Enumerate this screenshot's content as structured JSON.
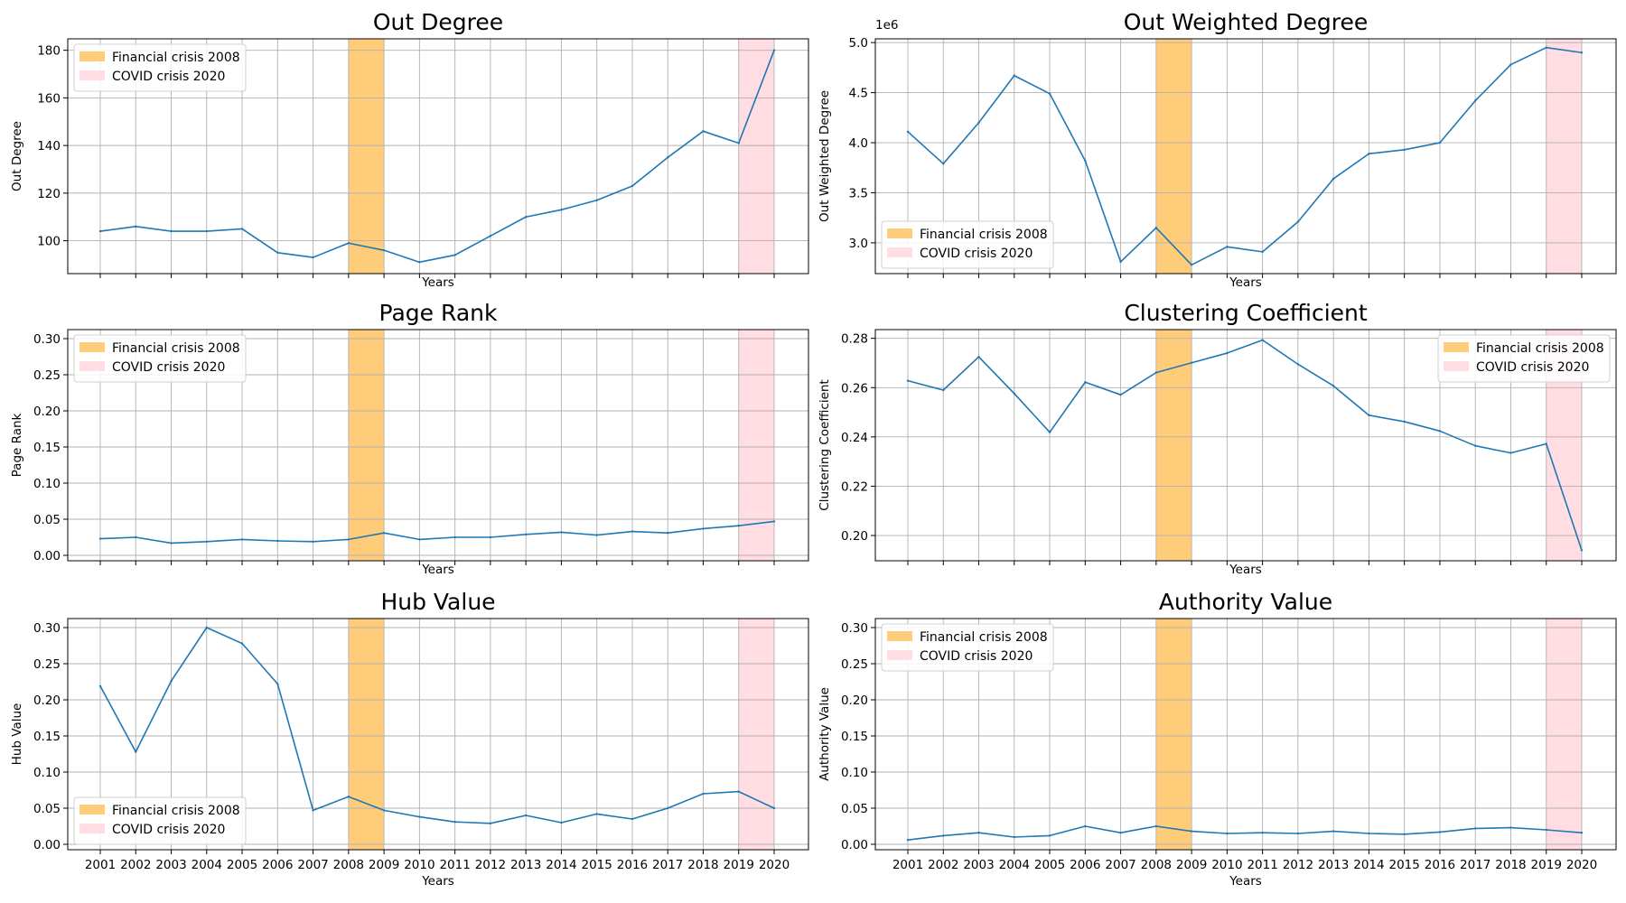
{
  "chart_data": [
    {
      "type": "line",
      "title": "Out Degree",
      "xlabel": "Years",
      "ylabel": "Out Degree",
      "x": [
        2001,
        2002,
        2003,
        2004,
        2005,
        2006,
        2007,
        2008,
        2009,
        2010,
        2011,
        2012,
        2013,
        2014,
        2015,
        2016,
        2017,
        2018,
        2019,
        2020
      ],
      "values": [
        104,
        106,
        104,
        104,
        105,
        95,
        93,
        99,
        96,
        91,
        94,
        102,
        110,
        113,
        117,
        123,
        135,
        146,
        141,
        180
      ],
      "ylim": [
        86.2,
        184.8
      ],
      "yticks": [
        100,
        120,
        140,
        160,
        180
      ],
      "ytick_labels": [
        "100",
        "120",
        "140",
        "160",
        "180"
      ],
      "show_xtick_labels": false,
      "offset_text": "",
      "legend_loc": "top-left",
      "grid": true
    },
    {
      "type": "line",
      "title": "Out Weighted Degree",
      "xlabel": "Years",
      "ylabel": "Out Weighted Degree",
      "x": [
        2001,
        2002,
        2003,
        2004,
        2005,
        2006,
        2007,
        2008,
        2009,
        2010,
        2011,
        2012,
        2013,
        2014,
        2015,
        2016,
        2017,
        2018,
        2019,
        2020
      ],
      "values": [
        4110000,
        3790000,
        4200000,
        4670000,
        4490000,
        3820000,
        2810000,
        3150000,
        2780000,
        2960000,
        2910000,
        3210000,
        3640000,
        3890000,
        3930000,
        4000000,
        4420000,
        4780000,
        4950000,
        4900000
      ],
      "ylim": [
        2692500,
        5037500
      ],
      "yticks": [
        3000000,
        3500000,
        4000000,
        4500000,
        5000000
      ],
      "ytick_labels": [
        "3.0",
        "3.5",
        "4.0",
        "4.5",
        "5.0"
      ],
      "show_xtick_labels": false,
      "offset_text": "1e6",
      "legend_loc": "bottom-left",
      "grid": true
    },
    {
      "type": "line",
      "title": "Page Rank",
      "xlabel": "Years",
      "ylabel": "Page Rank",
      "x": [
        2001,
        2002,
        2003,
        2004,
        2005,
        2006,
        2007,
        2008,
        2009,
        2010,
        2011,
        2012,
        2013,
        2014,
        2015,
        2016,
        2017,
        2018,
        2019,
        2020
      ],
      "values": [
        0.023,
        0.025,
        0.017,
        0.019,
        0.022,
        0.02,
        0.019,
        0.022,
        0.031,
        0.022,
        0.025,
        0.025,
        0.029,
        0.032,
        0.028,
        0.033,
        0.031,
        0.037,
        0.041,
        0.047
      ],
      "ylim": [
        -0.0075,
        0.3125
      ],
      "yticks": [
        0,
        0.05,
        0.1,
        0.15,
        0.2,
        0.25,
        0.3
      ],
      "ytick_labels": [
        "0.00",
        "0.05",
        "0.10",
        "0.15",
        "0.20",
        "0.25",
        "0.30"
      ],
      "show_xtick_labels": false,
      "offset_text": "",
      "legend_loc": "top-left",
      "grid": true
    },
    {
      "type": "line",
      "title": "Clustering Coefficient",
      "xlabel": "Years",
      "ylabel": "Clustering Coefficient",
      "x": [
        2001,
        2002,
        2003,
        2004,
        2005,
        2006,
        2007,
        2008,
        2009,
        2010,
        2011,
        2012,
        2013,
        2014,
        2015,
        2016,
        2017,
        2018,
        2019,
        2020
      ],
      "values": [
        0.2628,
        0.259,
        0.2725,
        0.2576,
        0.2419,
        0.2622,
        0.2571,
        0.2661,
        0.2701,
        0.274,
        0.2793,
        0.2695,
        0.2607,
        0.2488,
        0.2462,
        0.2424,
        0.2364,
        0.2335,
        0.2372,
        0.194
      ],
      "ylim": [
        0.18975,
        0.28355
      ],
      "yticks": [
        0.2,
        0.22,
        0.24,
        0.26,
        0.28
      ],
      "ytick_labels": [
        "0.20",
        "0.22",
        "0.24",
        "0.26",
        "0.28"
      ],
      "show_xtick_labels": false,
      "offset_text": "",
      "legend_loc": "top-right",
      "grid": true
    },
    {
      "type": "line",
      "title": "Hub Value",
      "xlabel": "Years",
      "ylabel": "Hub Value",
      "x": [
        2001,
        2002,
        2003,
        2004,
        2005,
        2006,
        2007,
        2008,
        2009,
        2010,
        2011,
        2012,
        2013,
        2014,
        2015,
        2016,
        2017,
        2018,
        2019,
        2020
      ],
      "values": [
        0.219,
        0.128,
        0.226,
        0.3,
        0.278,
        0.222,
        0.047,
        0.066,
        0.047,
        0.038,
        0.031,
        0.029,
        0.04,
        0.03,
        0.042,
        0.035,
        0.05,
        0.07,
        0.073,
        0.05
      ],
      "ylim": [
        -0.0075,
        0.3125
      ],
      "yticks": [
        0,
        0.05,
        0.1,
        0.15,
        0.2,
        0.25,
        0.3
      ],
      "ytick_labels": [
        "0.00",
        "0.05",
        "0.10",
        "0.15",
        "0.20",
        "0.25",
        "0.30"
      ],
      "show_xtick_labels": true,
      "offset_text": "",
      "legend_loc": "bottom-left",
      "grid": true
    },
    {
      "type": "line",
      "title": "Authority Value",
      "xlabel": "Years",
      "ylabel": "Authority Value",
      "x": [
        2001,
        2002,
        2003,
        2004,
        2005,
        2006,
        2007,
        2008,
        2009,
        2010,
        2011,
        2012,
        2013,
        2014,
        2015,
        2016,
        2017,
        2018,
        2019,
        2020
      ],
      "values": [
        0.006,
        0.012,
        0.016,
        0.01,
        0.012,
        0.025,
        0.016,
        0.025,
        0.018,
        0.015,
        0.016,
        0.015,
        0.018,
        0.015,
        0.014,
        0.017,
        0.022,
        0.023,
        0.02,
        0.016
      ],
      "ylim": [
        -0.0075,
        0.3125
      ],
      "yticks": [
        0,
        0.05,
        0.1,
        0.15,
        0.2,
        0.25,
        0.3
      ],
      "ytick_labels": [
        "0.00",
        "0.05",
        "0.10",
        "0.15",
        "0.20",
        "0.25",
        "0.30"
      ],
      "show_xtick_labels": true,
      "offset_text": "",
      "legend_loc": "top-left",
      "grid": true
    }
  ],
  "bands": [
    {
      "label": "Financial crisis 2008",
      "start": 2008,
      "end": 2009,
      "color": "#ffcd7a"
    },
    {
      "label": "COVID crisis 2020",
      "start": 2019,
      "end": 2020,
      "color": "#ffdde2"
    }
  ],
  "colors": {
    "line": "#1f77b4",
    "grid": "#b0b0b0",
    "legend_border": "#d0d0d0"
  }
}
